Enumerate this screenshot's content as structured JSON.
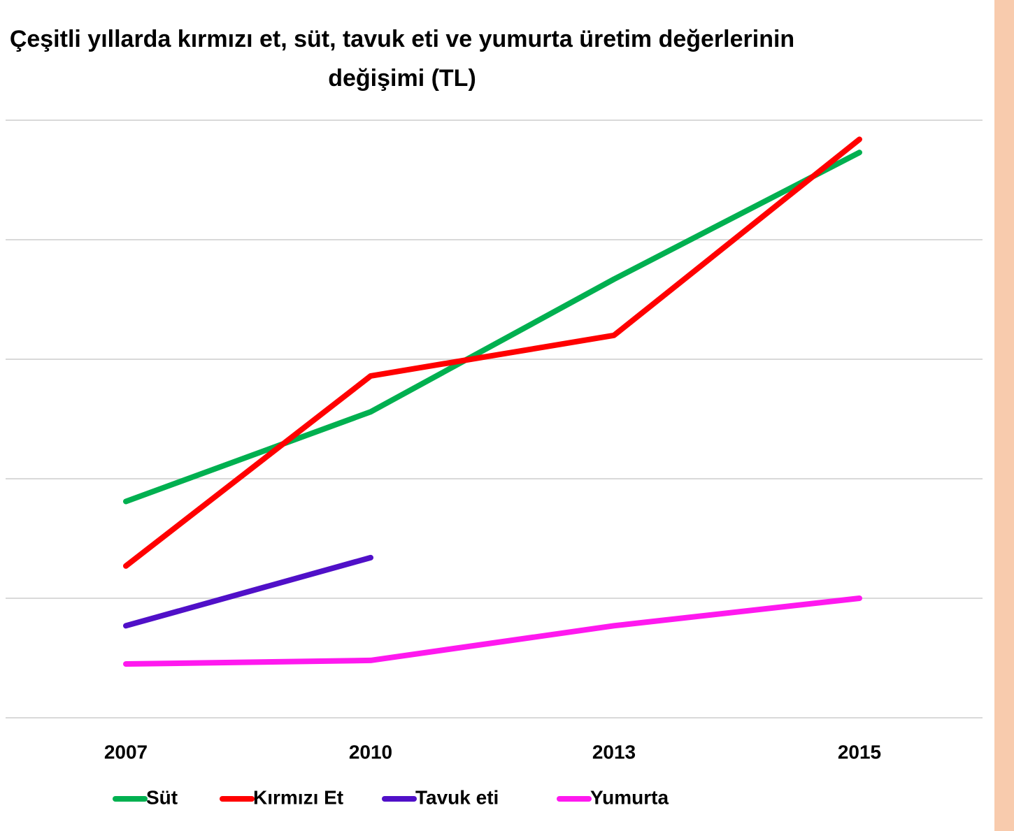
{
  "chart_data": {
    "type": "line",
    "title": "Çeşitli yıllarda kırmızı et, süt, tavuk eti ve yumurta üretim değerlerinin değişimi (TL)",
    "categories": [
      "2007",
      "2010",
      "2013",
      "2015"
    ],
    "series": [
      {
        "name": "Süt",
        "color": "#00b050",
        "values": [
          1.81,
          2.56,
          3.67,
          4.73
        ]
      },
      {
        "name": "Kırmızı Et",
        "color": "#ff0000",
        "values": [
          1.27,
          2.86,
          3.2,
          4.84
        ]
      },
      {
        "name": "Tavuk eti",
        "color": "#5010c8",
        "values": [
          0.77,
          1.34,
          null,
          null
        ]
      },
      {
        "name": "Yumurta",
        "color": "#ff19ef",
        "values": [
          0.45,
          0.48,
          0.77,
          1.0
        ]
      }
    ],
    "ylim": [
      0,
      5
    ],
    "yticks": [
      0,
      1,
      2,
      3,
      4,
      5
    ],
    "grid": true
  }
}
